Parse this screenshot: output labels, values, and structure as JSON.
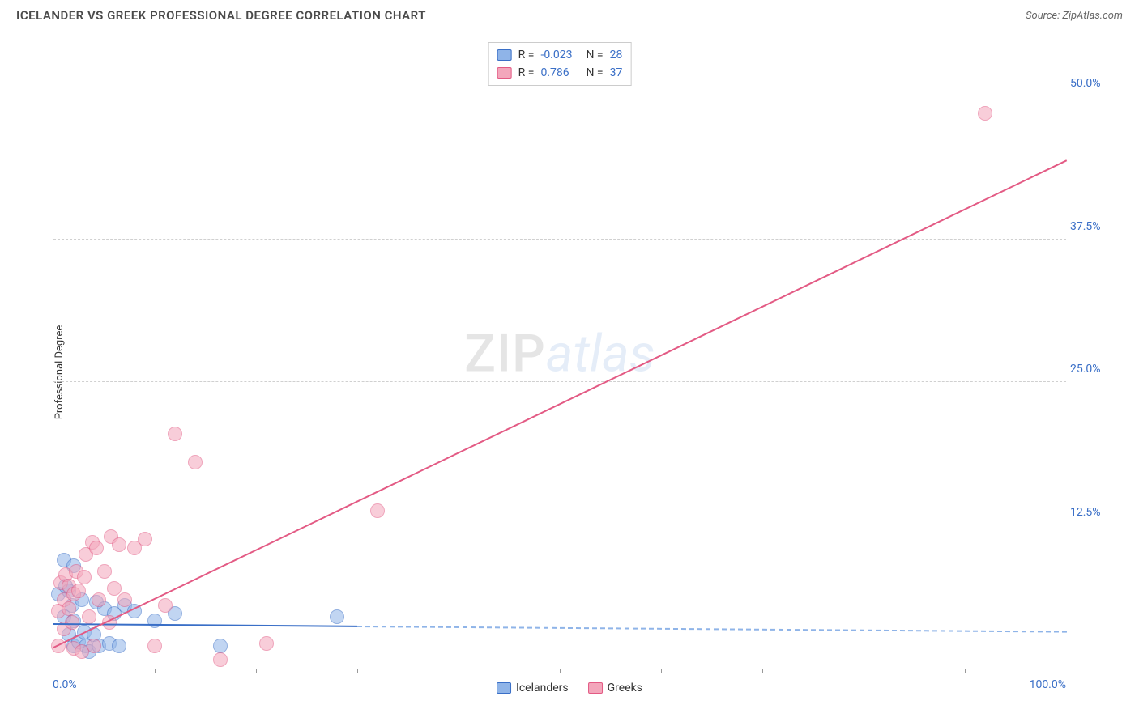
{
  "title": "ICELANDER VS GREEK PROFESSIONAL DEGREE CORRELATION CHART",
  "source": "Source: ZipAtlas.com",
  "ylabel": "Professional Degree",
  "watermark_a": "ZIP",
  "watermark_b": "atlas",
  "chart": {
    "type": "scatter",
    "xlim": [
      0,
      100
    ],
    "ylim": [
      0,
      55
    ],
    "x_start_label": "0.0%",
    "x_end_label": "100.0%",
    "y_ticks": [
      {
        "v": 12.5,
        "label": "12.5%"
      },
      {
        "v": 25.0,
        "label": "25.0%"
      },
      {
        "v": 37.5,
        "label": "37.5%"
      },
      {
        "v": 50.0,
        "label": "50.0%"
      }
    ],
    "x_tick_marks": [
      10,
      20,
      30,
      40,
      50,
      60,
      70,
      80,
      90
    ],
    "grid_color": "#d0d0d0",
    "axis_label_color": "#3a6fc7",
    "marker_radius": 9,
    "marker_opacity": 0.55,
    "series": [
      {
        "name": "Icelanders",
        "color_fill": "#8fb4e8",
        "color_stroke": "#3a6fc7",
        "R": "-0.023",
        "N": "28",
        "trend": {
          "x1": 0,
          "y1": 4.0,
          "x2": 30,
          "y2": 3.8,
          "solid_to_x": 30,
          "dash_to_x": 100
        },
        "points": [
          [
            0.5,
            6.5
          ],
          [
            1.0,
            9.5
          ],
          [
            1.0,
            4.5
          ],
          [
            1.2,
            7.2
          ],
          [
            1.5,
            3.0
          ],
          [
            1.5,
            6.8
          ],
          [
            1.8,
            5.5
          ],
          [
            2.0,
            4.2
          ],
          [
            2.0,
            2.0
          ],
          [
            2.0,
            9.0
          ],
          [
            2.5,
            2.3
          ],
          [
            2.8,
            6.0
          ],
          [
            3.0,
            3.2
          ],
          [
            3.2,
            2.0
          ],
          [
            3.5,
            1.5
          ],
          [
            4.0,
            3.0
          ],
          [
            4.2,
            5.8
          ],
          [
            4.5,
            2.0
          ],
          [
            5.0,
            5.2
          ],
          [
            5.5,
            2.2
          ],
          [
            6.0,
            4.8
          ],
          [
            6.5,
            2.0
          ],
          [
            7.0,
            5.5
          ],
          [
            8.0,
            5.0
          ],
          [
            10.0,
            4.2
          ],
          [
            12.0,
            4.8
          ],
          [
            16.5,
            2.0
          ],
          [
            28.0,
            4.5
          ]
        ]
      },
      {
        "name": "Greeks",
        "color_fill": "#f3a6bb",
        "color_stroke": "#e35a84",
        "R": "0.786",
        "N": "37",
        "trend": {
          "x1": 0,
          "y1": 2.0,
          "x2": 100,
          "y2": 44.5,
          "solid_to_x": 100,
          "dash_to_x": 100
        },
        "points": [
          [
            0.5,
            5.0
          ],
          [
            0.5,
            2.0
          ],
          [
            0.7,
            7.5
          ],
          [
            1.0,
            6.0
          ],
          [
            1.0,
            3.5
          ],
          [
            1.2,
            8.2
          ],
          [
            1.5,
            5.2
          ],
          [
            1.5,
            7.2
          ],
          [
            1.8,
            4.0
          ],
          [
            2.0,
            6.5
          ],
          [
            2.0,
            1.8
          ],
          [
            2.2,
            8.5
          ],
          [
            2.5,
            6.8
          ],
          [
            2.8,
            1.5
          ],
          [
            3.0,
            8.0
          ],
          [
            3.2,
            10.0
          ],
          [
            3.5,
            4.5
          ],
          [
            3.8,
            11.0
          ],
          [
            4.0,
            2.0
          ],
          [
            4.2,
            10.5
          ],
          [
            4.5,
            6.0
          ],
          [
            5.0,
            8.5
          ],
          [
            5.5,
            4.0
          ],
          [
            5.7,
            11.5
          ],
          [
            6.0,
            7.0
          ],
          [
            6.5,
            10.8
          ],
          [
            7.0,
            6.0
          ],
          [
            8.0,
            10.5
          ],
          [
            9.0,
            11.3
          ],
          [
            10.0,
            2.0
          ],
          [
            11.0,
            5.5
          ],
          [
            12.0,
            20.5
          ],
          [
            14.0,
            18.0
          ],
          [
            16.5,
            0.8
          ],
          [
            21.0,
            2.2
          ],
          [
            32.0,
            13.8
          ],
          [
            92.0,
            48.5
          ]
        ]
      }
    ]
  },
  "legend_top_prefix_R": "R =",
  "legend_top_prefix_N": "N ="
}
